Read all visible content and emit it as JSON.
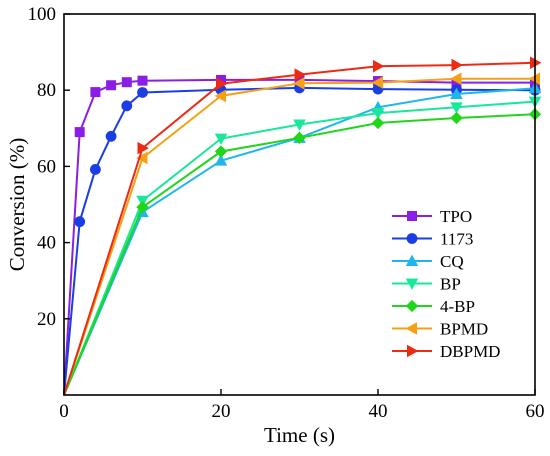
{
  "chart_data": {
    "type": "line",
    "title": "",
    "xlabel": "Time (s)",
    "ylabel": "Conversion (%)",
    "xlim": [
      0,
      60
    ],
    "ylim": [
      0,
      100
    ],
    "xticks": [
      0,
      20,
      40,
      60
    ],
    "yticks": [
      20,
      40,
      60,
      80,
      100
    ],
    "grid": false,
    "legend_position": "bottom-right",
    "series": [
      {
        "name": "TPO",
        "color": "#8b1ee6",
        "marker": "square",
        "points": [
          [
            0,
            0
          ],
          [
            2,
            69
          ],
          [
            4,
            79.5
          ],
          [
            6,
            81.3
          ],
          [
            8,
            82.1
          ],
          [
            10,
            82.5
          ],
          [
            20,
            82.7
          ],
          [
            30,
            82.7
          ],
          [
            40,
            82.4
          ],
          [
            50,
            82
          ],
          [
            60,
            82
          ]
        ]
      },
      {
        "name": "1173",
        "color": "#1a3de6",
        "marker": "circle",
        "points": [
          [
            0,
            0
          ],
          [
            2,
            45.5
          ],
          [
            4,
            59.2
          ],
          [
            6,
            67.9
          ],
          [
            8,
            75.9
          ],
          [
            10,
            79.4
          ],
          [
            20,
            80.1
          ],
          [
            30,
            80.6
          ],
          [
            40,
            80.3
          ],
          [
            50,
            80.1
          ],
          [
            60,
            80
          ]
        ]
      },
      {
        "name": "CQ",
        "color": "#1fb6ec",
        "marker": "triangle-up",
        "points": [
          [
            0,
            0
          ],
          [
            10,
            48
          ],
          [
            20,
            61.5
          ],
          [
            30,
            67.5
          ],
          [
            40,
            75.5
          ],
          [
            50,
            79
          ],
          [
            60,
            80.5
          ]
        ]
      },
      {
        "name": "BP",
        "color": "#19e89a",
        "marker": "triangle-down",
        "points": [
          [
            0,
            0
          ],
          [
            10,
            51
          ],
          [
            20,
            67.3
          ],
          [
            30,
            71
          ],
          [
            40,
            74
          ],
          [
            50,
            75.5
          ],
          [
            60,
            77
          ]
        ]
      },
      {
        "name": "4-BP",
        "color": "#20d61a",
        "marker": "diamond",
        "points": [
          [
            0,
            0
          ],
          [
            10,
            49.3
          ],
          [
            20,
            63.9
          ],
          [
            30,
            67.5
          ],
          [
            40,
            71.4
          ],
          [
            50,
            72.7
          ],
          [
            60,
            73.7
          ]
        ]
      },
      {
        "name": "BPMD",
        "color": "#f5a113",
        "marker": "triangle-left",
        "points": [
          [
            0,
            0
          ],
          [
            10,
            62.2
          ],
          [
            20,
            78.5
          ],
          [
            30,
            81.8
          ],
          [
            40,
            82
          ],
          [
            50,
            83
          ],
          [
            60,
            83
          ]
        ]
      },
      {
        "name": "DBPMD",
        "color": "#ec2b14",
        "marker": "triangle-right",
        "points": [
          [
            0,
            0
          ],
          [
            10,
            64.8
          ],
          [
            20,
            81.7
          ],
          [
            30,
            84.1
          ],
          [
            40,
            86.3
          ],
          [
            50,
            86.6
          ],
          [
            60,
            87.2
          ]
        ]
      }
    ]
  }
}
